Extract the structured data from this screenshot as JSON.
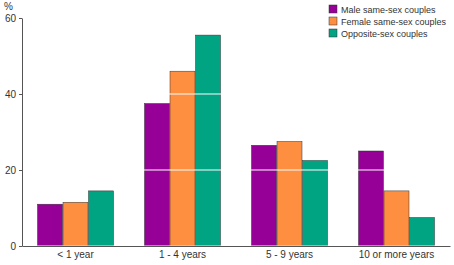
{
  "chart_data": {
    "type": "bar",
    "y_label": "%",
    "categories": [
      "< 1 year",
      "1 - 4 years",
      "5 - 9 years",
      "10 or more years"
    ],
    "series": [
      {
        "name": "Male same-sex couples",
        "color": "#960096",
        "values": [
          11,
          37.5,
          26.5,
          25
        ]
      },
      {
        "name": "Female same-sex couples",
        "color": "#ff8f40",
        "values": [
          11.5,
          46,
          27.5,
          14.5
        ]
      },
      {
        "name": "Opposite-sex couples",
        "color": "#00a382",
        "values": [
          14.5,
          55.5,
          22.5,
          7.5
        ]
      }
    ],
    "ylim": [
      0,
      60
    ],
    "yticks": [
      0,
      20,
      40,
      60
    ],
    "grid": true,
    "legend": "upper right"
  }
}
